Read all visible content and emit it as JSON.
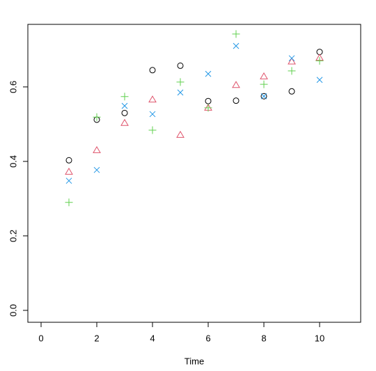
{
  "chart_data": {
    "type": "scatter",
    "x_label": "Time",
    "x": [
      1,
      2,
      3,
      4,
      5,
      6,
      7,
      8,
      9,
      10
    ],
    "series": [
      {
        "color": "#000000",
        "marker": "circle",
        "values": [
          0.403,
          0.512,
          0.53,
          0.645,
          0.657,
          0.562,
          0.563,
          0.575,
          0.588,
          0.694
        ]
      },
      {
        "color": "#df536b",
        "marker": "triangle",
        "values": [
          0.372,
          0.43,
          0.503,
          0.566,
          0.471,
          0.544,
          0.605,
          0.628,
          0.668,
          0.678
        ]
      },
      {
        "color": "#61d04f",
        "marker": "plus",
        "values": [
          0.29,
          0.519,
          0.574,
          0.484,
          0.613,
          0.544,
          0.742,
          0.607,
          0.643,
          0.67
        ]
      },
      {
        "color": "#2297e6",
        "marker": "x",
        "values": [
          0.348,
          0.377,
          0.549,
          0.527,
          0.585,
          0.635,
          0.71,
          0.575,
          0.677,
          0.619
        ]
      }
    ],
    "xlim": [
      -0.475,
      11.475
    ],
    "ylim": [
      -0.032,
      0.768
    ],
    "xticks": [
      0,
      2,
      4,
      6,
      8,
      10
    ],
    "yticks": [
      {
        "value": 0,
        "label": "0.0"
      },
      {
        "value": 0.2,
        "label": "0.2"
      },
      {
        "value": 0.4,
        "label": "0.4"
      },
      {
        "value": 0.6,
        "label": "0.6"
      }
    ]
  }
}
